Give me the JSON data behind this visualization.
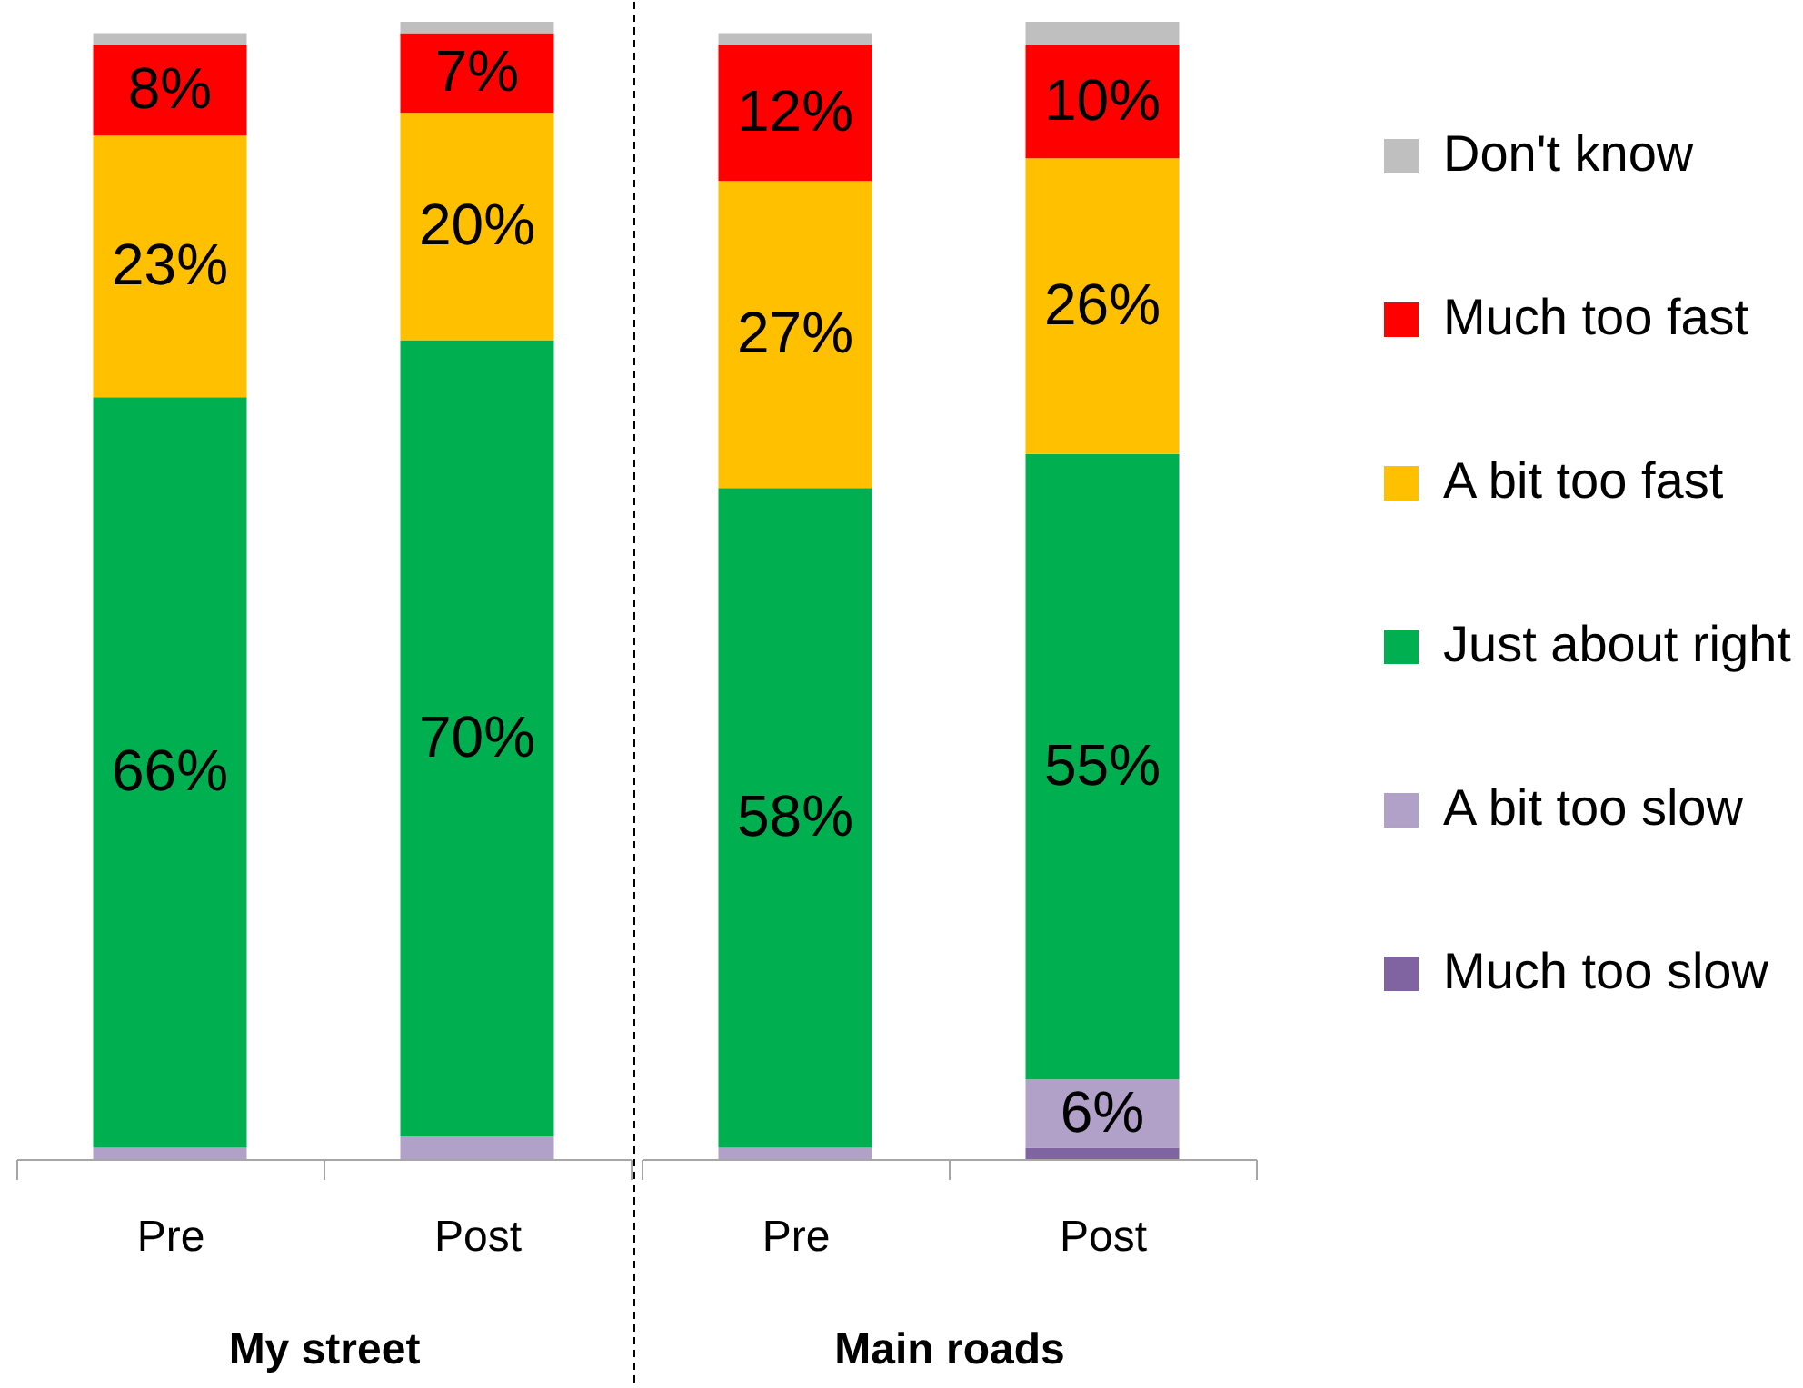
{
  "chart_data": [
    {
      "type": "bar",
      "stacked": true,
      "categories": [
        "Pre",
        "Post"
      ],
      "xlabel": "My street",
      "tick_labels": "x",
      "legend": "right",
      "series": [
        {
          "name": "A bit too slow",
          "color": "#b1a0c7",
          "values": [
            1,
            2
          ]
        },
        {
          "name": "Just about right",
          "color": "#00b050",
          "values": [
            66,
            70
          ],
          "value_labels": [
            "66%",
            "70%"
          ]
        },
        {
          "name": "A bit too fast",
          "color": "#ffc000",
          "values": [
            23,
            20
          ],
          "value_labels": [
            "23%",
            "20%"
          ]
        },
        {
          "name": "Much too fast",
          "color": "#ff0000",
          "values": [
            8,
            7
          ],
          "value_labels": [
            "8%",
            "7%"
          ]
        },
        {
          "name": "Don't know",
          "color": "#bfbfbf",
          "values": [
            1,
            1
          ]
        }
      ]
    },
    {
      "type": "bar",
      "stacked": true,
      "categories": [
        "Pre",
        "Post"
      ],
      "xlabel": "Main roads",
      "tick_labels": "x",
      "legend": "right",
      "series": [
        {
          "name": "Much too slow",
          "color": "#8064a2",
          "values": [
            null,
            1
          ]
        },
        {
          "name": "A bit too slow",
          "color": "#b1a0c7",
          "values": [
            1,
            6
          ],
          "value_labels": [
            null,
            "6%"
          ]
        },
        {
          "name": "Just about right",
          "color": "#00b050",
          "values": [
            58,
            55
          ],
          "value_labels": [
            "58%",
            "55%"
          ]
        },
        {
          "name": "A bit too fast",
          "color": "#ffc000",
          "values": [
            27,
            26
          ],
          "value_labels": [
            "27%",
            "26%"
          ]
        },
        {
          "name": "Much too fast",
          "color": "#ff0000",
          "values": [
            12,
            10
          ],
          "value_labels": [
            "12%",
            "10%"
          ]
        },
        {
          "name": "Don't know",
          "color": "#bfbfbf",
          "values": [
            1,
            2
          ]
        }
      ]
    }
  ]
}
